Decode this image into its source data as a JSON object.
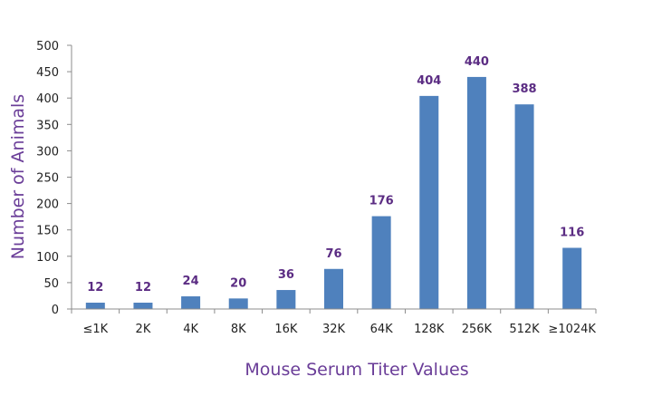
{
  "chart_data": {
    "type": "bar",
    "categories": [
      "≤1K",
      "2K",
      "4K",
      "8K",
      "16K",
      "32K",
      "64K",
      "128K",
      "256K",
      "512K",
      "≥1024K"
    ],
    "values": [
      12,
      12,
      24,
      20,
      36,
      76,
      176,
      404,
      440,
      388,
      116
    ],
    "data_labels": [
      "12",
      "12",
      "24",
      "20",
      "36",
      "76",
      "176",
      "404",
      "440",
      "388",
      "116"
    ],
    "xlabel": "Mouse Serum Titer Values",
    "ylabel": "Number of Animals",
    "ylim": [
      0,
      500
    ],
    "y_ticks": [
      "0",
      "50",
      "100",
      "150",
      "200",
      "250",
      "300",
      "350",
      "400",
      "450",
      "500"
    ],
    "grid": false,
    "legend": "none",
    "colors": {
      "bar": "#4f81bd",
      "data_label": "#5b2c83",
      "axis_title": "#6a3d98"
    }
  }
}
